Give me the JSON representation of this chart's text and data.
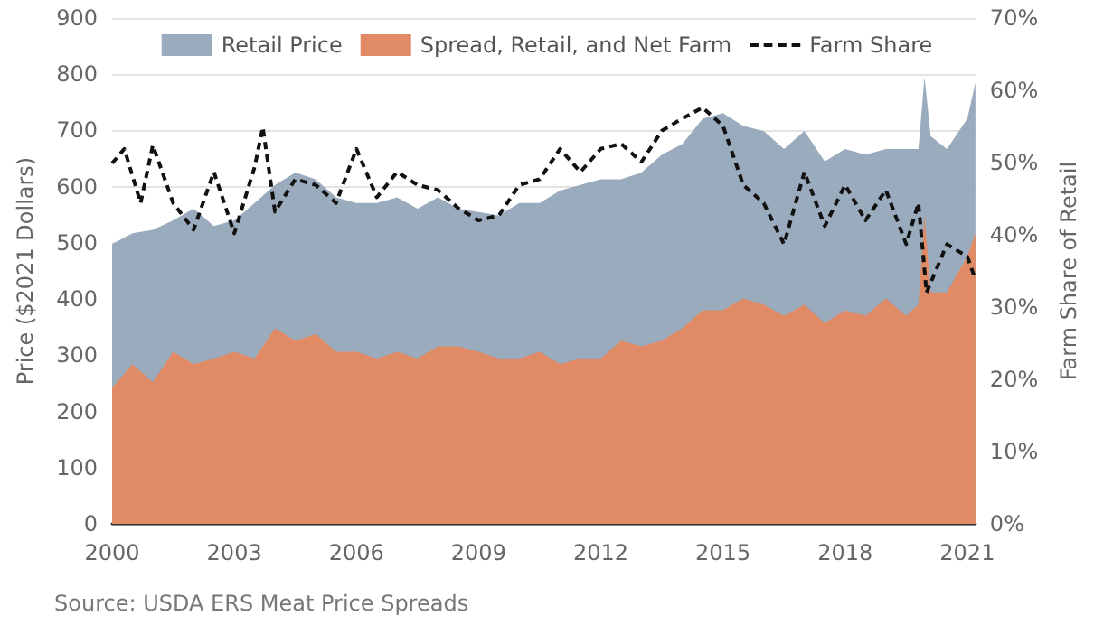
{
  "chart_data": {
    "type": "area",
    "ylabel": "Price ($2021 Dollars)",
    "y2label": "Farm Share of Retail",
    "xlim": [
      2000,
      2021.2
    ],
    "xticks": [
      2000,
      2003,
      2006,
      2009,
      2012,
      2015,
      2018,
      2021
    ],
    "ylim": [
      0,
      900
    ],
    "yticks": [
      0,
      100,
      200,
      300,
      400,
      500,
      600,
      700,
      800,
      900
    ],
    "y2lim": [
      0,
      70
    ],
    "y2ticks": [
      {
        "value": 0,
        "label": "0%"
      },
      {
        "value": 10,
        "label": "10%"
      },
      {
        "value": 20,
        "label": "20%"
      },
      {
        "value": 30,
        "label": "30%"
      },
      {
        "value": 40,
        "label": "40%"
      },
      {
        "value": 50,
        "label": "50%"
      },
      {
        "value": 60,
        "label": "60%"
      },
      {
        "value": 70,
        "label": "70%"
      }
    ],
    "grid": "y",
    "legend": "top",
    "annotations": [
      "Source: USDA ERS Meat Price Spreads"
    ],
    "series": [
      {
        "name": "Retail Price",
        "color": "#9aabbd",
        "x": [
          2000,
          2000.5,
          2001,
          2001.5,
          2002,
          2002.5,
          2003,
          2003.5,
          2004,
          2004.5,
          2005,
          2005.5,
          2006,
          2006.5,
          2007,
          2007.5,
          2008,
          2008.5,
          2009,
          2009.5,
          2010,
          2010.5,
          2011,
          2011.5,
          2012,
          2012.5,
          2013,
          2013.5,
          2014,
          2014.5,
          2015,
          2015.5,
          2016,
          2016.5,
          2017,
          2017.5,
          2018,
          2018.5,
          2019,
          2019.5,
          2019.8,
          2019.95,
          2020.1,
          2020.5,
          2021,
          2021.2
        ],
        "values": [
          498,
          517,
          523,
          540,
          561,
          530,
          540,
          571,
          603,
          625,
          613,
          581,
          571,
          571,
          581,
          561,
          581,
          561,
          555,
          549,
          571,
          571,
          593,
          603,
          613,
          613,
          625,
          657,
          676,
          721,
          731,
          708,
          699,
          667,
          699,
          645,
          667,
          657,
          667,
          667,
          667,
          795,
          690,
          667,
          721,
          785
        ]
      },
      {
        "name": "Spread, Retail, and Net Farm",
        "color": "#e08a66",
        "x": [
          2000,
          2000.5,
          2001,
          2001.5,
          2002,
          2002.5,
          2003,
          2003.5,
          2004,
          2004.5,
          2005,
          2005.5,
          2006,
          2006.5,
          2007,
          2007.5,
          2008,
          2008.5,
          2009,
          2009.5,
          2010,
          2010.5,
          2011,
          2011.5,
          2012,
          2012.5,
          2013,
          2013.5,
          2014,
          2014.5,
          2015,
          2015.5,
          2016,
          2016.5,
          2017,
          2017.5,
          2018,
          2018.5,
          2019,
          2019.5,
          2019.8,
          2019.95,
          2020.1,
          2020.5,
          2021,
          2021.2
        ],
        "values": [
          242,
          284,
          252,
          306,
          284,
          294,
          306,
          294,
          348,
          326,
          338,
          306,
          306,
          294,
          306,
          294,
          316,
          316,
          306,
          294,
          294,
          306,
          284,
          294,
          294,
          326,
          316,
          326,
          348,
          380,
          380,
          401,
          390,
          370,
          390,
          357,
          380,
          370,
          401,
          370,
          390,
          549,
          412,
          412,
          476,
          517
        ]
      },
      {
        "name": "Farm Share",
        "type": "line",
        "axis": "y2",
        "line_style": "dashed",
        "color": "#111111",
        "x": [
          2000,
          2000.3,
          2000.7,
          2001,
          2001.5,
          2002,
          2002.5,
          2003,
          2003.5,
          2003.7,
          2004,
          2004.5,
          2005,
          2005.5,
          2006,
          2006.5,
          2007,
          2007.5,
          2008,
          2008.5,
          2009,
          2009.5,
          2010,
          2010.5,
          2011,
          2011.5,
          2012,
          2012.5,
          2013,
          2013.5,
          2014,
          2014.5,
          2015,
          2015.5,
          2016,
          2016.5,
          2017,
          2017.5,
          2018,
          2018.5,
          2019,
          2019.5,
          2019.8,
          2020,
          2020.5,
          2021,
          2021.2
        ],
        "values": [
          49.9,
          51.9,
          44.4,
          52.4,
          44.4,
          40.7,
          48.7,
          40.2,
          49.4,
          54.9,
          43.2,
          47.7,
          46.9,
          44.4,
          51.9,
          45.2,
          48.7,
          46.9,
          46.2,
          43.7,
          42.0,
          42.7,
          46.9,
          47.7,
          51.9,
          48.7,
          51.9,
          52.6,
          50.1,
          54.4,
          56.1,
          57.6,
          55.1,
          46.9,
          44.4,
          38.7,
          48.7,
          41.2,
          46.9,
          42.0,
          46.2,
          38.7,
          44.4,
          32.0,
          38.7,
          37.0,
          33.8
        ]
      }
    ]
  }
}
